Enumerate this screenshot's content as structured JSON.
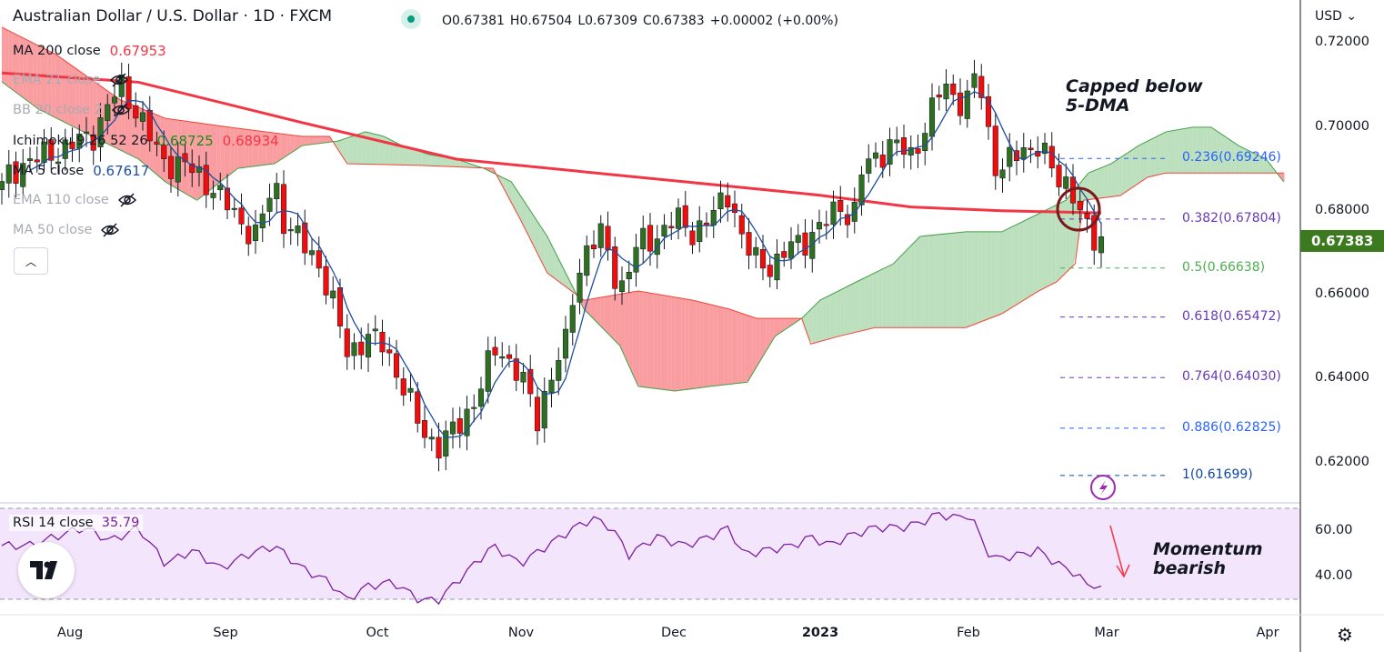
{
  "header": {
    "title": "Australian Dollar / U.S. Dollar · 1D · FXCM",
    "open": "O0.67381",
    "high": "H0.67504",
    "low": "L0.67309",
    "close": "C0.67383",
    "change": "+0.00002 (+0.00%)"
  },
  "legend": [
    {
      "label": "MA 200 close",
      "value": "0.67953",
      "hidden": false
    },
    {
      "label": "EMA 21 close",
      "hidden": true
    },
    {
      "label": "BB 20 close 2",
      "hidden": true
    },
    {
      "label": "Ichimoku 9 26 52 26",
      "value": "0.68725",
      "value2": "0.68934",
      "hidden": false
    },
    {
      "label": "MA 5 close",
      "value": "0.67617",
      "hidden": false
    },
    {
      "label": "EMA 110 close",
      "hidden": true
    },
    {
      "label": "MA 50 close",
      "hidden": true
    }
  ],
  "price_axis": {
    "currency": "USD",
    "ticks": [
      "0.72000",
      "0.70000",
      "0.68000",
      "0.66000",
      "0.64000",
      "0.62000"
    ],
    "last_price": "0.67383"
  },
  "time_axis": [
    "Aug",
    "Sep",
    "Oct",
    "Nov",
    "Dec",
    "2023",
    "Feb",
    "Mar",
    "Apr"
  ],
  "rsi": {
    "label": "RSI 14 close",
    "value": "35.79",
    "ticks": [
      "60.00",
      "40.00"
    ]
  },
  "annotations": {
    "top": [
      "Capped below",
      "5-DMA"
    ],
    "bottom": [
      "Momentum",
      "bearish"
    ]
  },
  "fib_levels": [
    {
      "label": "0.236(0.69246)",
      "price": 0.69246,
      "color": "#2962ff"
    },
    {
      "label": "0.382(0.67804)",
      "price": 0.67804,
      "color": "#673ab7"
    },
    {
      "label": "0.5(0.66638)",
      "price": 0.66638,
      "color": "#4caf50"
    },
    {
      "label": "0.618(0.65472)",
      "price": 0.65472,
      "color": "#673ab7"
    },
    {
      "label": "0.764(0.64030)",
      "price": 0.6403,
      "color": "#673ab7"
    },
    {
      "label": "0.886(0.62825)",
      "price": 0.62825,
      "color": "#2962ff"
    },
    {
      "label": "1(0.61699)",
      "price": 0.61699,
      "color": "#0d47a1"
    }
  ],
  "colors": {
    "up": "#2f6f22",
    "down": "#f20d0d",
    "ma200": "#f23645",
    "ma5": "#1e4fa0",
    "cloud_up": "#a5d6a7",
    "cloud_down": "#f77c80",
    "rsi": "#7b1fa2"
  },
  "chart_data": {
    "type": "candlestick",
    "title": "Australian Dollar / U.S. Dollar · 1D · FXCM",
    "ylim": [
      0.61,
      0.723
    ],
    "x_unit": "trading-day index",
    "close_pivots": [
      [
        0,
        0.687
      ],
      [
        2.6,
        0.691
      ],
      [
        7.7,
        0.694
      ],
      [
        12.9,
        0.698
      ],
      [
        16.8,
        0.71
      ],
      [
        19.4,
        0.703
      ],
      [
        22.6,
        0.692
      ],
      [
        25.8,
        0.691
      ],
      [
        29.7,
        0.686
      ],
      [
        33.5,
        0.678
      ],
      [
        36.1,
        0.674
      ],
      [
        38.7,
        0.687
      ],
      [
        40,
        0.678
      ],
      [
        42.6,
        0.672
      ],
      [
        45.2,
        0.667
      ],
      [
        47.7,
        0.654
      ],
      [
        49,
        0.646
      ],
      [
        51.6,
        0.65
      ],
      [
        54.2,
        0.648
      ],
      [
        56.8,
        0.639
      ],
      [
        59.4,
        0.628
      ],
      [
        61.9,
        0.624
      ],
      [
        64.5,
        0.628
      ],
      [
        67.1,
        0.635
      ],
      [
        70.3,
        0.648
      ],
      [
        73.5,
        0.641
      ],
      [
        76.1,
        0.63
      ],
      [
        77.4,
        0.639
      ],
      [
        80,
        0.648
      ],
      [
        81.3,
        0.663
      ],
      [
        83.2,
        0.672
      ],
      [
        85.2,
        0.674
      ],
      [
        87.7,
        0.661
      ],
      [
        90.3,
        0.672
      ],
      [
        92.9,
        0.674
      ],
      [
        95.5,
        0.678
      ],
      [
        98.1,
        0.675
      ],
      [
        100.6,
        0.678
      ],
      [
        103.2,
        0.685
      ],
      [
        105.2,
        0.672
      ],
      [
        107.1,
        0.668
      ],
      [
        109.7,
        0.667
      ],
      [
        112.3,
        0.672
      ],
      [
        114.8,
        0.674
      ],
      [
        117.4,
        0.678
      ],
      [
        119.4,
        0.683
      ],
      [
        120.6,
        0.675
      ],
      [
        121.9,
        0.689
      ],
      [
        123.9,
        0.693
      ],
      [
        126.5,
        0.696
      ],
      [
        129,
        0.693
      ],
      [
        131.6,
        0.702
      ],
      [
        133.5,
        0.71
      ],
      [
        135.5,
        0.707
      ],
      [
        136.8,
        0.705
      ],
      [
        138.3,
        0.713
      ],
      [
        139.4,
        0.705
      ],
      [
        140.6,
        0.692
      ],
      [
        141.9,
        0.69
      ],
      [
        144.5,
        0.694
      ],
      [
        147.1,
        0.696
      ],
      [
        149.7,
        0.687
      ],
      [
        151.6,
        0.687
      ],
      [
        152.9,
        0.68
      ],
      [
        154.6,
        0.672
      ],
      [
        156,
        0.67383
      ]
    ],
    "ma200_pivots": [
      [
        0,
        0.7128
      ],
      [
        19.4,
        0.7106
      ],
      [
        42.6,
        0.701
      ],
      [
        64.5,
        0.6923
      ],
      [
        90.3,
        0.688
      ],
      [
        116.1,
        0.6837
      ],
      [
        129,
        0.6809
      ],
      [
        141.9,
        0.68
      ],
      [
        156,
        0.6795
      ]
    ],
    "ichimoku_span_a": [
      [
        0,
        0.7107
      ],
      [
        5.2,
        0.7042
      ],
      [
        12.9,
        0.6977
      ],
      [
        19.4,
        0.6923
      ],
      [
        23.2,
        0.6869
      ],
      [
        27.7,
        0.6825
      ],
      [
        31,
        0.6869
      ],
      [
        33.5,
        0.6901
      ],
      [
        38.7,
        0.6912
      ],
      [
        42.6,
        0.6955
      ],
      [
        47.7,
        0.6966
      ],
      [
        51.6,
        0.6988
      ],
      [
        54.2,
        0.6977
      ],
      [
        56.8,
        0.6955
      ],
      [
        60.6,
        0.6934
      ],
      [
        64.5,
        0.6923
      ],
      [
        68.4,
        0.6901
      ],
      [
        72.3,
        0.6869
      ],
      [
        77.4,
        0.6739
      ],
      [
        82.6,
        0.6566
      ],
      [
        87.7,
        0.6479
      ],
      [
        90.3,
        0.6382
      ],
      [
        95.5,
        0.6371
      ],
      [
        100.6,
        0.6382
      ],
      [
        105.8,
        0.6392
      ],
      [
        109.7,
        0.6501
      ],
      [
        113.5,
        0.6544
      ],
      [
        116.1,
        0.6587
      ],
      [
        121.3,
        0.6631
      ],
      [
        126.5,
        0.6674
      ],
      [
        130.3,
        0.6739
      ],
      [
        136.8,
        0.675
      ],
      [
        141.9,
        0.675
      ],
      [
        145.8,
        0.6782
      ],
      [
        151,
        0.6825
      ],
      [
        154.2,
        0.689
      ],
      [
        157.4,
        0.6912
      ],
      [
        161.3,
        0.6955
      ],
      [
        165.2,
        0.6988
      ],
      [
        169,
        0.6999
      ],
      [
        171.6,
        0.6999
      ],
      [
        175.5,
        0.6955
      ],
      [
        179.4,
        0.6923
      ],
      [
        181.9,
        0.6869
      ]
    ],
    "ichimoku_span_b": [
      [
        0,
        0.7237
      ],
      [
        7.7,
        0.7172
      ],
      [
        16.8,
        0.7064
      ],
      [
        23.2,
        0.702
      ],
      [
        32.3,
        0.6999
      ],
      [
        42.6,
        0.6977
      ],
      [
        46.5,
        0.6977
      ],
      [
        49,
        0.6912
      ],
      [
        59.4,
        0.6908
      ],
      [
        69.7,
        0.6901
      ],
      [
        73.5,
        0.6782
      ],
      [
        77.4,
        0.6652
      ],
      [
        82.6,
        0.6587
      ],
      [
        90.3,
        0.6609
      ],
      [
        98.1,
        0.6587
      ],
      [
        103.2,
        0.6566
      ],
      [
        107.1,
        0.6544
      ],
      [
        113.5,
        0.6544
      ],
      [
        114.8,
        0.6483
      ],
      [
        118.7,
        0.6501
      ],
      [
        123.9,
        0.6522
      ],
      [
        129,
        0.6522
      ],
      [
        136.8,
        0.6522
      ],
      [
        141.9,
        0.6555
      ],
      [
        147.1,
        0.6609
      ],
      [
        149.7,
        0.6631
      ],
      [
        152.3,
        0.6674
      ],
      [
        153.5,
        0.6825
      ],
      [
        158.7,
        0.6836
      ],
      [
        162.6,
        0.688
      ],
      [
        165.2,
        0.689
      ],
      [
        181.9,
        0.689
      ]
    ],
    "rsi_pivots": [
      [
        0,
        53.6
      ],
      [
        3.9,
        53.6
      ],
      [
        7.7,
        57.6
      ],
      [
        11.6,
        61.6
      ],
      [
        15.5,
        55.6
      ],
      [
        19.4,
        61.6
      ],
      [
        23.2,
        45.6
      ],
      [
        27.1,
        51.6
      ],
      [
        31,
        43.6
      ],
      [
        34.8,
        49.6
      ],
      [
        38.7,
        53.6
      ],
      [
        42.6,
        43.6
      ],
      [
        46.5,
        37.6
      ],
      [
        49,
        29.6
      ],
      [
        51.6,
        35.6
      ],
      [
        55.5,
        37.6
      ],
      [
        59.4,
        29.6
      ],
      [
        61.9,
        29.6
      ],
      [
        64.5,
        37.6
      ],
      [
        69.7,
        53.6
      ],
      [
        73.5,
        45.6
      ],
      [
        77.4,
        53.6
      ],
      [
        81.3,
        61.6
      ],
      [
        83.9,
        65.6
      ],
      [
        86.5,
        61.6
      ],
      [
        89,
        49.6
      ],
      [
        92.9,
        57.6
      ],
      [
        96.8,
        53.6
      ],
      [
        100.6,
        57.6
      ],
      [
        103.2,
        61.6
      ],
      [
        105.2,
        49.6
      ],
      [
        108.4,
        51.6
      ],
      [
        112.3,
        53.6
      ],
      [
        114.8,
        57.6
      ],
      [
        117.4,
        53.6
      ],
      [
        120,
        57.6
      ],
      [
        123.9,
        61.6
      ],
      [
        127.7,
        61.6
      ],
      [
        130.3,
        63.6
      ],
      [
        132.9,
        67.6
      ],
      [
        135.5,
        65.6
      ],
      [
        137.4,
        67.6
      ],
      [
        139.4,
        53.6
      ],
      [
        140.6,
        47.6
      ],
      [
        144.5,
        49.6
      ],
      [
        147.1,
        51.6
      ],
      [
        149.7,
        45.6
      ],
      [
        152.3,
        41.6
      ],
      [
        154.6,
        34.4
      ],
      [
        156,
        35.79
      ]
    ],
    "rsi_bands": [
      30,
      70
    ]
  }
}
